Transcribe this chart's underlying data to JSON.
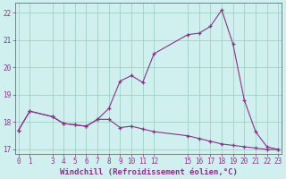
{
  "title": "",
  "xlabel": "Windchill (Refroidissement éolien,°C)",
  "ylabel": "",
  "background_color": "#cff0ee",
  "line_color": "#883388",
  "grid_color": "#99ccbb",
  "x_upper": [
    0,
    1,
    3,
    4,
    5,
    6,
    7,
    8,
    9,
    10,
    11,
    12,
    15,
    16,
    17,
    18,
    19,
    20,
    21,
    22,
    23
  ],
  "y_upper": [
    17.7,
    18.4,
    18.2,
    17.95,
    17.9,
    17.85,
    18.1,
    18.5,
    19.5,
    19.7,
    19.45,
    20.5,
    21.2,
    21.25,
    21.5,
    22.1,
    20.85,
    18.8,
    17.65,
    17.1,
    17.0
  ],
  "x_lower": [
    0,
    1,
    3,
    4,
    5,
    6,
    7,
    8,
    9,
    10,
    11,
    12,
    15,
    16,
    17,
    18,
    19,
    20,
    21,
    22,
    23
  ],
  "y_lower": [
    17.7,
    18.4,
    18.2,
    17.95,
    17.9,
    17.85,
    18.1,
    18.1,
    17.8,
    17.85,
    17.75,
    17.65,
    17.5,
    17.4,
    17.3,
    17.2,
    17.15,
    17.1,
    17.05,
    17.0,
    17.0
  ],
  "xlim": [
    -0.3,
    23.3
  ],
  "ylim": [
    16.85,
    22.35
  ],
  "yticks": [
    17,
    18,
    19,
    20,
    21,
    22
  ],
  "xticks": [
    0,
    1,
    3,
    4,
    5,
    6,
    7,
    8,
    9,
    10,
    11,
    12,
    15,
    16,
    17,
    18,
    19,
    20,
    21,
    22,
    23
  ],
  "tick_fontsize": 5.5,
  "xlabel_fontsize": 6.5,
  "figsize": [
    3.2,
    2.0
  ],
  "dpi": 100
}
